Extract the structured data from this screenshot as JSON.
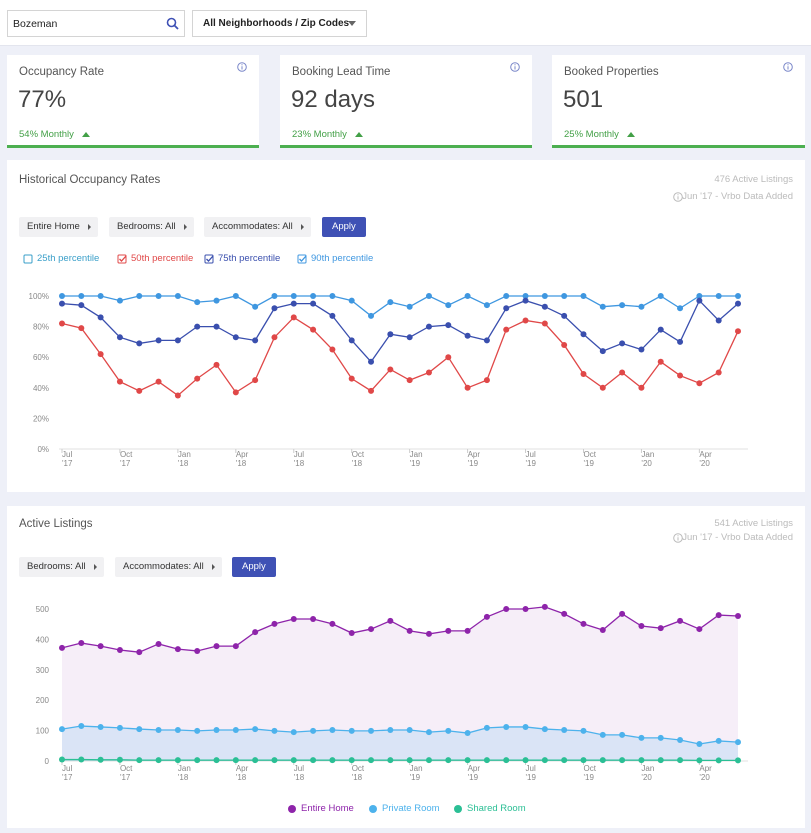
{
  "search": {
    "query": "Bozeman",
    "neighborhood": "All Neighborhoods / Zip Codes"
  },
  "cards": [
    {
      "label": "Occupancy Rate",
      "value": "77%",
      "change": "54% Monthly"
    },
    {
      "label": "Booking Lead Time",
      "value": "92 days",
      "change": "23% Monthly"
    },
    {
      "label": "Booked Properties",
      "value": "501",
      "change": "25% Monthly"
    }
  ],
  "chart_data": [
    {
      "type": "line",
      "title": "Historical Occupancy Rates",
      "listings": "476 Active Listings",
      "note": "Jun '17 - Vrbo Data Added",
      "filters": [
        "Entire Home",
        "Bedrooms: All",
        "Accommodates: All"
      ],
      "apply": "Apply",
      "legend": "top-left",
      "categories": [
        "Jul '17",
        null,
        null,
        "Oct '17",
        null,
        null,
        "Jan '18",
        null,
        null,
        "Apr '18",
        null,
        null,
        "Jul '18",
        null,
        null,
        "Oct '18",
        null,
        null,
        "Jan '19",
        null,
        null,
        "Apr '19",
        null,
        null,
        "Jul '19",
        null,
        null,
        "Oct '19",
        null,
        null,
        "Jan '20",
        null,
        null,
        "Apr '20",
        null,
        null
      ],
      "ylim": [
        0,
        100
      ],
      "yticks": [
        {
          "value": 0,
          "label": "0%"
        },
        {
          "value": 20,
          "label": "20%"
        },
        {
          "value": 40,
          "label": "40%"
        },
        {
          "value": 60,
          "label": "60%"
        },
        {
          "value": 80,
          "label": "80%"
        },
        {
          "value": 100,
          "label": "100%"
        }
      ],
      "grid": false,
      "series": [
        {
          "name": "25th percentile",
          "color": "#3a9fc9",
          "visible": false
        },
        {
          "name": "50th percentile",
          "color": "#e04848",
          "visible": true,
          "values": [
            82,
            79,
            62,
            44,
            38,
            44,
            35,
            46,
            55,
            37,
            45,
            73,
            86,
            78,
            65,
            46,
            38,
            52,
            45,
            50,
            60,
            40,
            45,
            78,
            84,
            82,
            68,
            49,
            40,
            50,
            40,
            57,
            48,
            43,
            50,
            77
          ]
        },
        {
          "name": "75th percentile",
          "color": "#3a4fae",
          "visible": true,
          "values": [
            95,
            94,
            86,
            73,
            69,
            71,
            71,
            80,
            80,
            73,
            71,
            92,
            95,
            95,
            87,
            71,
            57,
            75,
            73,
            80,
            81,
            74,
            71,
            92,
            97,
            93,
            87,
            75,
            64,
            69,
            65,
            78,
            70,
            97,
            84,
            95
          ]
        },
        {
          "name": "90th percentile",
          "color": "#3f97e0",
          "visible": true,
          "values": [
            100,
            100,
            100,
            97,
            100,
            100,
            100,
            96,
            97,
            100,
            93,
            100,
            100,
            100,
            100,
            97,
            87,
            96,
            93,
            100,
            94,
            100,
            94,
            100,
            100,
            100,
            100,
            100,
            93,
            94,
            93,
            100,
            92,
            100,
            100,
            100
          ]
        }
      ]
    },
    {
      "type": "area",
      "title": "Active Listings",
      "listings": "541 Active Listings",
      "note": "Jun '17 - Vrbo Data Added",
      "filters": [
        "Bedrooms: All",
        "Accommodates: All"
      ],
      "apply": "Apply",
      "legend": "bottom",
      "categories": [
        "Jul '17",
        null,
        null,
        "Oct '17",
        null,
        null,
        "Jan '18",
        null,
        null,
        "Apr '18",
        null,
        null,
        "Jul '18",
        null,
        null,
        "Oct '18",
        null,
        null,
        "Jan '19",
        null,
        null,
        "Apr '19",
        null,
        null,
        "Jul '19",
        null,
        null,
        "Oct '19",
        null,
        null,
        "Jan '20",
        null,
        null,
        "Apr '20",
        null,
        null
      ],
      "ylim": [
        0,
        500
      ],
      "yticks": [
        0,
        100,
        200,
        300,
        400,
        500
      ],
      "grid": false,
      "series": [
        {
          "name": "Entire Home",
          "color": "#8e24aa",
          "values": [
            372,
            388,
            378,
            365,
            358,
            385,
            368,
            362,
            378,
            378,
            424,
            451,
            467,
            467,
            451,
            421,
            434,
            461,
            428,
            418,
            428,
            428,
            474,
            500,
            500,
            507,
            484,
            451,
            431,
            484,
            444,
            437,
            461,
            434,
            480,
            477
          ]
        },
        {
          "name": "Private Room",
          "color": "#4db2ec",
          "values": [
            105,
            115,
            112,
            109,
            105,
            102,
            102,
            99,
            102,
            102,
            105,
            99,
            95,
            99,
            102,
            99,
            99,
            102,
            102,
            95,
            99,
            92,
            109,
            112,
            112,
            105,
            102,
            99,
            86,
            86,
            76,
            76,
            69,
            56,
            66,
            62
          ]
        },
        {
          "name": "Shared Room",
          "color": "#2bbf95",
          "values": [
            5,
            5,
            4,
            4,
            3,
            3,
            3,
            3,
            3,
            3,
            3,
            3,
            3,
            3,
            3,
            3,
            3,
            3,
            3,
            3,
            3,
            3,
            3,
            3,
            3,
            3,
            3,
            3,
            3,
            3,
            3,
            3,
            3,
            2,
            2,
            2
          ]
        }
      ]
    }
  ]
}
